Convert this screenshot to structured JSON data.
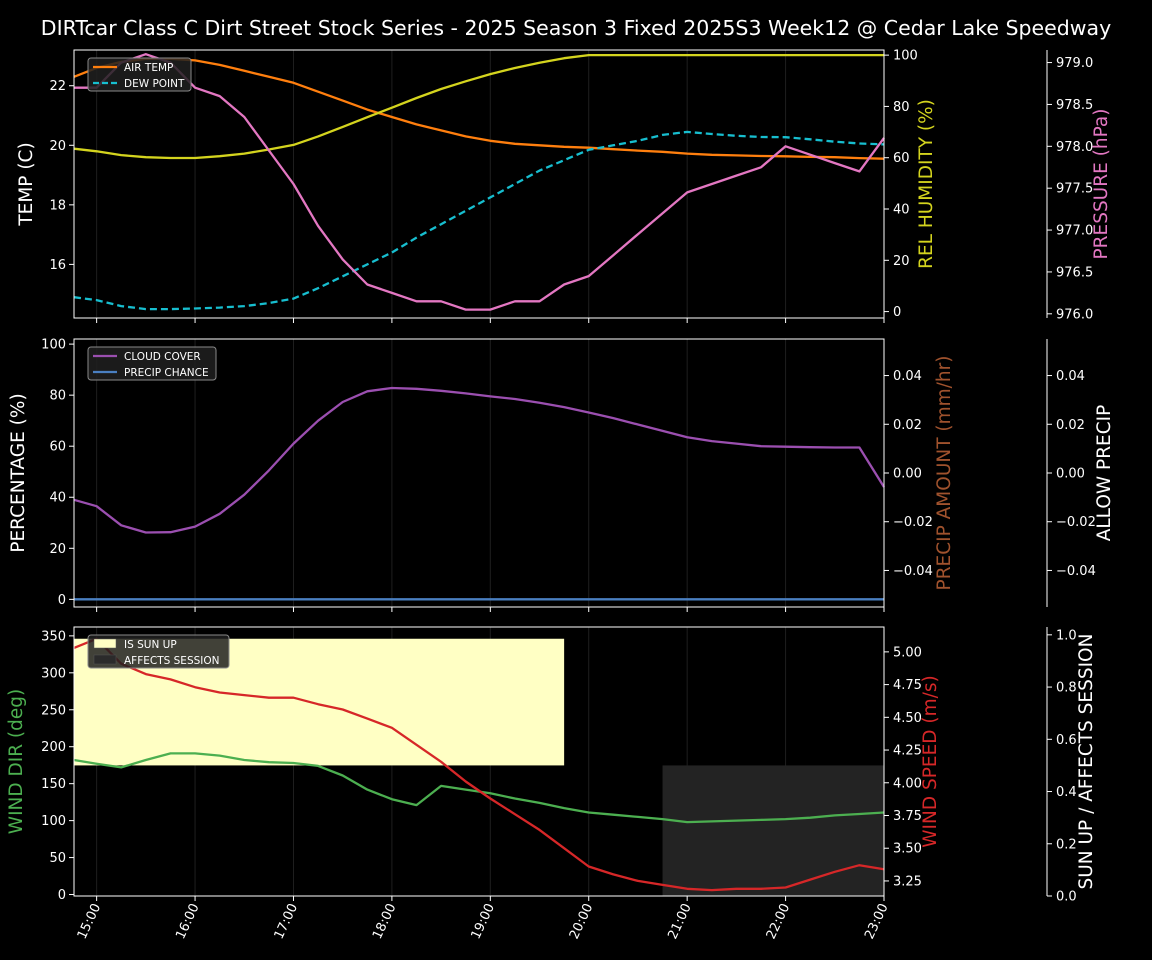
{
  "chart_data": {
    "title": "DIRTcar Class C Dirt Street Stock Series - 2025 Season 3 Fixed 2025S3 Week12 @ Cedar Lake Speedway",
    "x_ticks": [
      "15:00",
      "16:00",
      "17:00",
      "18:00",
      "19:00",
      "20:00",
      "21:00",
      "22:00",
      "23:00"
    ],
    "x_range": [
      14.77,
      23.0
    ],
    "panels": [
      {
        "type": "line",
        "ylabel": "TEMP (C)",
        "ylabel_color": "#ffffff",
        "ylim": [
          14.2,
          23.2
        ],
        "yticks": [
          16,
          18,
          20,
          22
        ],
        "right_label": "REL HUMIDITY (%)",
        "right_label_color": "#d4d41e",
        "right_ylim": [
          -2.5,
          102
        ],
        "right_yticks": [
          0,
          20,
          40,
          60,
          80,
          100
        ],
        "far_label": "PRESSURE (hPa)",
        "far_label_color": "#e377c2",
        "far_ylim": [
          975.95,
          979.15
        ],
        "far_yticks": [
          "976.0",
          "976.5",
          "977.0",
          "977.5",
          "978.0",
          "978.5",
          "979.0"
        ],
        "legend": [
          {
            "label": "AIR TEMP",
            "color": "#ff7f0e",
            "dash": false
          },
          {
            "label": "DEW POINT",
            "color": "#17becf",
            "dash": true
          }
        ],
        "series": [
          {
            "name": "AIR TEMP",
            "axis": "left",
            "color": "#ff7f0e",
            "dash": false,
            "x": [
              14.77,
              15.0,
              15.25,
              15.5,
              15.75,
              16.0,
              16.25,
              16.5,
              16.75,
              17.0,
              17.25,
              17.5,
              17.75,
              18.0,
              18.25,
              18.5,
              18.75,
              19.0,
              19.25,
              19.5,
              19.75,
              20.0,
              20.25,
              20.5,
              20.75,
              21.0,
              21.25,
              21.5,
              21.75,
              22.0,
              22.25,
              22.5,
              22.75,
              23.0
            ],
            "values": [
              22.3,
              22.6,
              22.8,
              22.9,
              22.9,
              22.85,
              22.7,
              22.5,
              22.3,
              22.1,
              21.8,
              21.5,
              21.2,
              20.95,
              20.7,
              20.5,
              20.3,
              20.15,
              20.05,
              20.0,
              19.95,
              19.92,
              19.87,
              19.82,
              19.78,
              19.72,
              19.68,
              19.66,
              19.64,
              19.63,
              19.61,
              19.6,
              19.57,
              19.55
            ]
          },
          {
            "name": "DEW POINT",
            "axis": "left",
            "color": "#17becf",
            "dash": true,
            "x": [
              14.77,
              15.0,
              15.25,
              15.5,
              15.75,
              16.0,
              16.25,
              16.5,
              16.75,
              17.0,
              17.25,
              17.5,
              17.75,
              18.0,
              18.25,
              18.5,
              18.75,
              19.0,
              19.25,
              19.5,
              19.75,
              20.0,
              20.25,
              20.5,
              20.75,
              21.0,
              21.25,
              21.5,
              21.75,
              22.0,
              22.25,
              22.5,
              22.75,
              23.0
            ],
            "values": [
              14.9,
              14.8,
              14.6,
              14.5,
              14.5,
              14.52,
              14.55,
              14.6,
              14.7,
              14.85,
              15.2,
              15.6,
              16.0,
              16.4,
              16.9,
              17.35,
              17.8,
              18.25,
              18.7,
              19.15,
              19.5,
              19.85,
              20.0,
              20.15,
              20.35,
              20.45,
              20.38,
              20.32,
              20.28,
              20.27,
              20.2,
              20.12,
              20.06,
              20.03
            ]
          },
          {
            "name": "REL HUMIDITY",
            "axis": "right",
            "color": "#d4d41e",
            "dash": false,
            "x": [
              14.77,
              15.0,
              15.25,
              15.5,
              15.75,
              16.0,
              16.25,
              16.5,
              16.75,
              17.0,
              17.25,
              17.5,
              17.75,
              18.0,
              18.25,
              18.5,
              18.75,
              19.0,
              19.25,
              19.5,
              19.75,
              20.0,
              20.25,
              20.5,
              20.75,
              21.0,
              21.25,
              21.5,
              21.75,
              22.0,
              22.25,
              22.5,
              22.75,
              23.0
            ],
            "values": [
              63.5,
              62.5,
              61.0,
              60.2,
              59.9,
              59.9,
              60.6,
              61.6,
              63.2,
              65.0,
              68.3,
              72.0,
              75.8,
              79.5,
              83.3,
              86.8,
              89.8,
              92.6,
              95.0,
              97.0,
              98.8,
              100.0,
              100.0,
              100.0,
              100.0,
              100.0,
              100.0,
              100.0,
              100.0,
              100.0,
              100.0,
              100.0,
              100.0,
              100.0
            ]
          },
          {
            "name": "PRESSURE",
            "axis": "far",
            "color": "#e377c2",
            "dash": false,
            "x": [
              14.77,
              15.0,
              15.25,
              15.5,
              15.75,
              16.0,
              16.25,
              16.5,
              16.75,
              17.0,
              17.25,
              17.5,
              17.75,
              18.0,
              18.25,
              18.5,
              18.75,
              19.0,
              19.25,
              19.5,
              19.75,
              20.0,
              20.25,
              20.5,
              20.75,
              21.0,
              21.25,
              21.5,
              21.75,
              22.0,
              22.25,
              22.5,
              22.75,
              23.0
            ],
            "values": [
              978.7,
              978.7,
              979.0,
              979.1,
              979.0,
              978.7,
              978.6,
              978.35,
              977.95,
              977.55,
              977.05,
              976.65,
              976.35,
              976.25,
              976.15,
              976.15,
              976.05,
              976.05,
              976.15,
              976.15,
              976.35,
              976.45,
              976.7,
              976.95,
              977.2,
              977.45,
              977.55,
              977.65,
              977.75,
              978.0,
              977.9,
              977.8,
              977.7,
              978.1
            ]
          }
        ]
      },
      {
        "type": "line",
        "ylabel": "PERCENTAGE (%)",
        "ylabel_color": "#ffffff",
        "ylim": [
          -3,
          102
        ],
        "yticks": [
          0,
          20,
          40,
          60,
          80,
          100
        ],
        "right_label": "PRECIP AMOUNT (mm/hr)",
        "right_label_color": "#a0522d",
        "right_ylim": [
          -0.055,
          0.055
        ],
        "right_yticks": [
          "−0.04",
          "−0.02",
          "0.00",
          "0.02",
          "0.04"
        ],
        "right_ytick_values": [
          -0.04,
          -0.02,
          0.0,
          0.02,
          0.04
        ],
        "far_label": "ALLOW PRECIP",
        "far_label_color": "#ffffff",
        "far_ylim": [
          -0.055,
          0.055
        ],
        "far_yticks": [
          "−0.04",
          "−0.02",
          "0.00",
          "0.02",
          "0.04"
        ],
        "far_ytick_values": [
          -0.04,
          -0.02,
          0.0,
          0.02,
          0.04
        ],
        "legend": [
          {
            "label": "CLOUD COVER",
            "color": "#9b4fb0",
            "dash": false
          },
          {
            "label": "PRECIP CHANCE",
            "color": "#4a7fc1",
            "dash": false
          }
        ],
        "series": [
          {
            "name": "CLOUD COVER",
            "axis": "left",
            "color": "#9b4fb0",
            "dash": false,
            "x": [
              14.77,
              15.0,
              15.25,
              15.5,
              15.75,
              16.0,
              16.25,
              16.5,
              16.75,
              17.0,
              17.25,
              17.5,
              17.75,
              18.0,
              18.25,
              18.5,
              18.75,
              19.0,
              19.25,
              19.5,
              19.75,
              20.0,
              20.25,
              20.5,
              20.75,
              21.0,
              21.25,
              21.5,
              21.75,
              22.0,
              22.25,
              22.5,
              22.75,
              23.0
            ],
            "values": [
              39,
              36.5,
              29,
              26.2,
              26.3,
              28.5,
              33.5,
              41,
              50.5,
              61,
              70,
              77.3,
              81.5,
              82.8,
              82.5,
              81.7,
              80.7,
              79.5,
              78.5,
              77,
              75.3,
              73.2,
              71,
              68.5,
              66,
              63.5,
              62,
              61,
              60,
              59.8,
              59.6,
              59.5,
              59.5,
              44
            ]
          },
          {
            "name": "PRECIP CHANCE",
            "axis": "left",
            "color": "#4a7fc1",
            "dash": false,
            "x": [
              14.77,
              23.0
            ],
            "values": [
              0,
              0
            ]
          }
        ]
      },
      {
        "type": "line",
        "ylabel": "WIND DIR (deg)",
        "ylabel_color": "#4caf50",
        "ylim": [
          -2,
          362
        ],
        "yticks": [
          0,
          50,
          100,
          150,
          200,
          250,
          300,
          350
        ],
        "right_label": "WIND SPEED (m/s)",
        "right_label_color": "#d62728",
        "right_ylim": [
          3.135,
          5.19
        ],
        "right_yticks": [
          "3.25",
          "3.50",
          "3.75",
          "4.00",
          "4.25",
          "4.50",
          "4.75",
          "5.00"
        ],
        "right_ytick_values": [
          3.25,
          3.5,
          3.75,
          4.0,
          4.25,
          4.5,
          4.75,
          5.0
        ],
        "far_label": "SUN UP / AFFECTS SESSION",
        "far_label_color": "#ffffff",
        "far_ylim": [
          0,
          1.03
        ],
        "far_yticks": [
          "0.0",
          "0.2",
          "0.4",
          "0.6",
          "0.8",
          "1.0"
        ],
        "far_ytick_values": [
          0.0,
          0.2,
          0.4,
          0.6,
          0.8,
          1.0
        ],
        "legend": [
          {
            "label": "IS SUN UP",
            "color": "#ffffc4",
            "patch": true
          },
          {
            "label": "AFFECTS SESSION",
            "color": "#2b2b2b",
            "patch": true
          }
        ],
        "bands": [
          {
            "name": "IS SUN UP",
            "color": "#ffffc4",
            "x0": 14.77,
            "x1": 19.75,
            "y0": 0.5,
            "y1": 0.985
          },
          {
            "name": "AFFECTS SESSION",
            "color": "#232323",
            "x0": 20.75,
            "x1": 23.0,
            "y0": 0.0,
            "y1": 0.5
          }
        ],
        "series": [
          {
            "name": "WIND DIR",
            "axis": "left",
            "color": "#4caf50",
            "dash": false,
            "x": [
              14.77,
              15.0,
              15.25,
              15.5,
              15.75,
              16.0,
              16.25,
              16.5,
              16.75,
              17.0,
              17.25,
              17.5,
              17.75,
              18.0,
              18.25,
              18.5,
              18.75,
              19.0,
              19.25,
              19.5,
              19.75,
              20.0,
              20.25,
              20.5,
              20.75,
              21.0,
              21.25,
              21.5,
              21.75,
              22.0,
              22.25,
              22.5,
              22.75,
              23.0
            ],
            "values": [
              182,
              177,
              172,
              182,
              191,
              191,
              188,
              182,
              179,
              178,
              174,
              161,
              142,
              129,
              121,
              147,
              142,
              137,
              130,
              124,
              117,
              111,
              108,
              105,
              102,
              98,
              99,
              100,
              101,
              102,
              104,
              107,
              109,
              111
            ]
          },
          {
            "name": "WIND SPEED",
            "axis": "right",
            "color": "#d62728",
            "dash": false,
            "x": [
              14.77,
              15.0,
              15.25,
              15.5,
              15.75,
              16.0,
              16.25,
              16.5,
              16.75,
              17.0,
              17.25,
              17.5,
              17.75,
              18.0,
              18.25,
              18.5,
              18.75,
              19.0,
              19.25,
              19.5,
              19.75,
              20.0,
              20.25,
              20.5,
              20.75,
              21.0,
              21.25,
              21.5,
              21.75,
              22.0,
              22.25,
              22.5,
              22.75,
              23.0
            ],
            "values": [
              5.03,
              5.1,
              4.91,
              4.83,
              4.79,
              4.73,
              4.69,
              4.67,
              4.65,
              4.65,
              4.6,
              4.56,
              4.49,
              4.42,
              4.29,
              4.16,
              4.01,
              3.88,
              3.76,
              3.64,
              3.5,
              3.36,
              3.3,
              3.25,
              3.22,
              3.19,
              3.18,
              3.19,
              3.19,
              3.2,
              3.26,
              3.32,
              3.37,
              3.34
            ]
          }
        ]
      }
    ]
  }
}
